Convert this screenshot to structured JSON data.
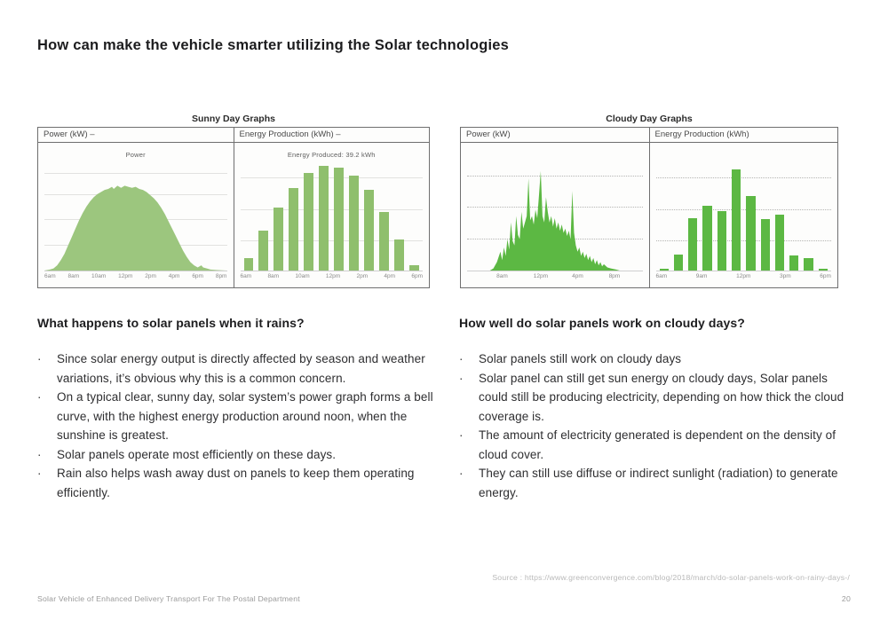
{
  "page": {
    "title": "How can make the vehicle smarter utilizing the Solar technologies",
    "source": "Source : https://www.greenconvergence.com/blog/2018/march/do-solar-panels-work-on-rainy-days-/",
    "footer_left": "Solar Vehicle of Enhanced Delivery Transport For The Postal Department",
    "page_number": "20"
  },
  "columns": {
    "left": {
      "heading": "What happens to solar panels when it rains?",
      "bullets": [
        "Since solar energy output is directly affected by season and weather variations, it’s obvious why this is a common concern.",
        "On a typical clear, sunny day, solar system’s power graph forms a bell curve, with the highest energy production around noon, when the sunshine is greatest.",
        "Solar panels operate most efficiently on these days.",
        "Rain also helps wash away dust on panels to keep them operating efficiently."
      ]
    },
    "right": {
      "heading": "How well do solar panels work on cloudy days?",
      "bullets": [
        "Solar panels still work on cloudy days",
        "Solar panel can still get sun energy on cloudy days, Solar panels could still be producing electricity, depending on how thick the cloud coverage is.",
        "The amount of electricity generated is dependent on the density of cloud cover.",
        "They can still use diffuse or indirect sunlight (radiation) to generate energy."
      ]
    }
  },
  "chart_data": [
    {
      "id": "sunny-power",
      "type": "area",
      "group_title": "Sunny Day Graphs",
      "panel_header": "Power (kW) –",
      "inner_label": "Power",
      "color": "#9cc67e",
      "grid_style": "solid",
      "gridlines": [
        0.24,
        0.48,
        0.72,
        0.92
      ],
      "x_ticks": [
        "6am",
        "8am",
        "10am",
        "12pm",
        "2pm",
        "4pm",
        "6pm",
        "8pm"
      ],
      "ylabel": "Power (kW)",
      "points": [
        [
          0,
          0
        ],
        [
          3,
          0.01
        ],
        [
          5,
          0.02
        ],
        [
          7,
          0.05
        ],
        [
          9,
          0.1
        ],
        [
          11,
          0.16
        ],
        [
          13,
          0.24
        ],
        [
          15,
          0.32
        ],
        [
          17,
          0.4
        ],
        [
          19,
          0.48
        ],
        [
          21,
          0.55
        ],
        [
          23,
          0.61
        ],
        [
          25,
          0.66
        ],
        [
          27,
          0.7
        ],
        [
          29,
          0.73
        ],
        [
          31,
          0.75
        ],
        [
          33,
          0.77
        ],
        [
          35,
          0.78
        ],
        [
          37,
          0.8
        ],
        [
          38,
          0.78
        ],
        [
          40,
          0.81
        ],
        [
          42,
          0.79
        ],
        [
          44,
          0.81
        ],
        [
          46,
          0.8
        ],
        [
          48,
          0.79
        ],
        [
          50,
          0.8
        ],
        [
          52,
          0.78
        ],
        [
          54,
          0.77
        ],
        [
          56,
          0.75
        ],
        [
          58,
          0.72
        ],
        [
          60,
          0.69
        ],
        [
          62,
          0.65
        ],
        [
          64,
          0.6
        ],
        [
          66,
          0.54
        ],
        [
          68,
          0.47
        ],
        [
          70,
          0.4
        ],
        [
          72,
          0.33
        ],
        [
          74,
          0.26
        ],
        [
          76,
          0.19
        ],
        [
          78,
          0.13
        ],
        [
          80,
          0.08
        ],
        [
          82,
          0.05
        ],
        [
          84,
          0.03
        ],
        [
          86,
          0.05
        ],
        [
          87,
          0.03
        ],
        [
          89,
          0.02
        ],
        [
          91,
          0.01
        ],
        [
          94,
          0.005
        ],
        [
          100,
          0
        ]
      ]
    },
    {
      "id": "sunny-energy",
      "type": "bar",
      "group_title": "Sunny Day Graphs",
      "panel_header": "Energy Production (kWh) –",
      "inner_label": "Energy Produced: 39.2 kWh",
      "color": "#8fbf6d",
      "grid_style": "solid",
      "gridlines": [
        0.28,
        0.58,
        0.88
      ],
      "x_ticks": [
        "6am",
        "8am",
        "10am",
        "12pm",
        "2pm",
        "4pm",
        "6pm"
      ],
      "ylabel": "Energy Production (kWh)",
      "values": [
        0.12,
        0.38,
        0.6,
        0.79,
        0.93,
        1.0,
        0.98,
        0.91,
        0.77,
        0.56,
        0.3,
        0.05
      ]
    },
    {
      "id": "cloudy-power",
      "type": "area",
      "group_title": "Cloudy Day Graphs",
      "panel_header": "Power (kW)",
      "inner_label": "",
      "color": "#5cb843",
      "grid_style": "dotted",
      "gridlines": [
        0.3,
        0.6,
        0.9
      ],
      "x_ticks": [
        "8am",
        "12pm",
        "4pm",
        "8pm"
      ],
      "x_tick_pos": [
        20,
        42,
        63,
        84
      ],
      "ylabel": "Power (kW)",
      "points": [
        [
          0,
          0
        ],
        [
          13,
          0
        ],
        [
          15,
          0.02
        ],
        [
          17,
          0.08
        ],
        [
          19,
          0.18
        ],
        [
          20,
          0.1
        ],
        [
          21,
          0.22
        ],
        [
          22,
          0.14
        ],
        [
          23,
          0.3
        ],
        [
          24,
          0.2
        ],
        [
          25,
          0.46
        ],
        [
          26,
          0.28
        ],
        [
          27,
          0.24
        ],
        [
          28,
          0.52
        ],
        [
          29,
          0.34
        ],
        [
          30,
          0.3
        ],
        [
          31,
          0.56
        ],
        [
          32,
          0.4
        ],
        [
          33,
          0.46
        ],
        [
          34,
          0.52
        ],
        [
          35,
          0.88
        ],
        [
          36,
          0.48
        ],
        [
          37,
          0.52
        ],
        [
          38,
          0.44
        ],
        [
          39,
          0.58
        ],
        [
          40,
          0.5
        ],
        [
          41,
          0.72
        ],
        [
          42,
          0.95
        ],
        [
          43,
          0.52
        ],
        [
          44,
          0.46
        ],
        [
          45,
          0.7
        ],
        [
          46,
          0.56
        ],
        [
          47,
          0.46
        ],
        [
          48,
          0.52
        ],
        [
          49,
          0.42
        ],
        [
          50,
          0.5
        ],
        [
          51,
          0.4
        ],
        [
          52,
          0.46
        ],
        [
          53,
          0.38
        ],
        [
          54,
          0.44
        ],
        [
          55,
          0.36
        ],
        [
          56,
          0.4
        ],
        [
          57,
          0.33
        ],
        [
          58,
          0.38
        ],
        [
          59,
          0.3
        ],
        [
          60,
          0.76
        ],
        [
          61,
          0.36
        ],
        [
          62,
          0.24
        ],
        [
          63,
          0.18
        ],
        [
          64,
          0.22
        ],
        [
          65,
          0.14
        ],
        [
          66,
          0.18
        ],
        [
          67,
          0.12
        ],
        [
          68,
          0.16
        ],
        [
          69,
          0.1
        ],
        [
          70,
          0.14
        ],
        [
          71,
          0.08
        ],
        [
          72,
          0.12
        ],
        [
          73,
          0.06
        ],
        [
          74,
          0.1
        ],
        [
          75,
          0.05
        ],
        [
          76,
          0.08
        ],
        [
          77,
          0.04
        ],
        [
          78,
          0.06
        ],
        [
          80,
          0.03
        ],
        [
          82,
          0.02
        ],
        [
          85,
          0.01
        ],
        [
          87,
          0
        ],
        [
          100,
          0
        ]
      ]
    },
    {
      "id": "cloudy-energy",
      "type": "bar",
      "group_title": "Cloudy Day Graphs",
      "panel_header": "Energy Production (kWh)",
      "inner_label": "",
      "color": "#5cb843",
      "grid_style": "dotted",
      "gridlines": [
        0.28,
        0.58,
        0.88
      ],
      "x_ticks": [
        "6am",
        "9am",
        "12pm",
        "3pm",
        "6pm"
      ],
      "ylabel": "Energy Production (kWh)",
      "values": [
        0.02,
        0.15,
        0.5,
        0.62,
        0.57,
        0.97,
        0.71,
        0.49,
        0.53,
        0.14,
        0.12,
        0.02
      ]
    }
  ]
}
